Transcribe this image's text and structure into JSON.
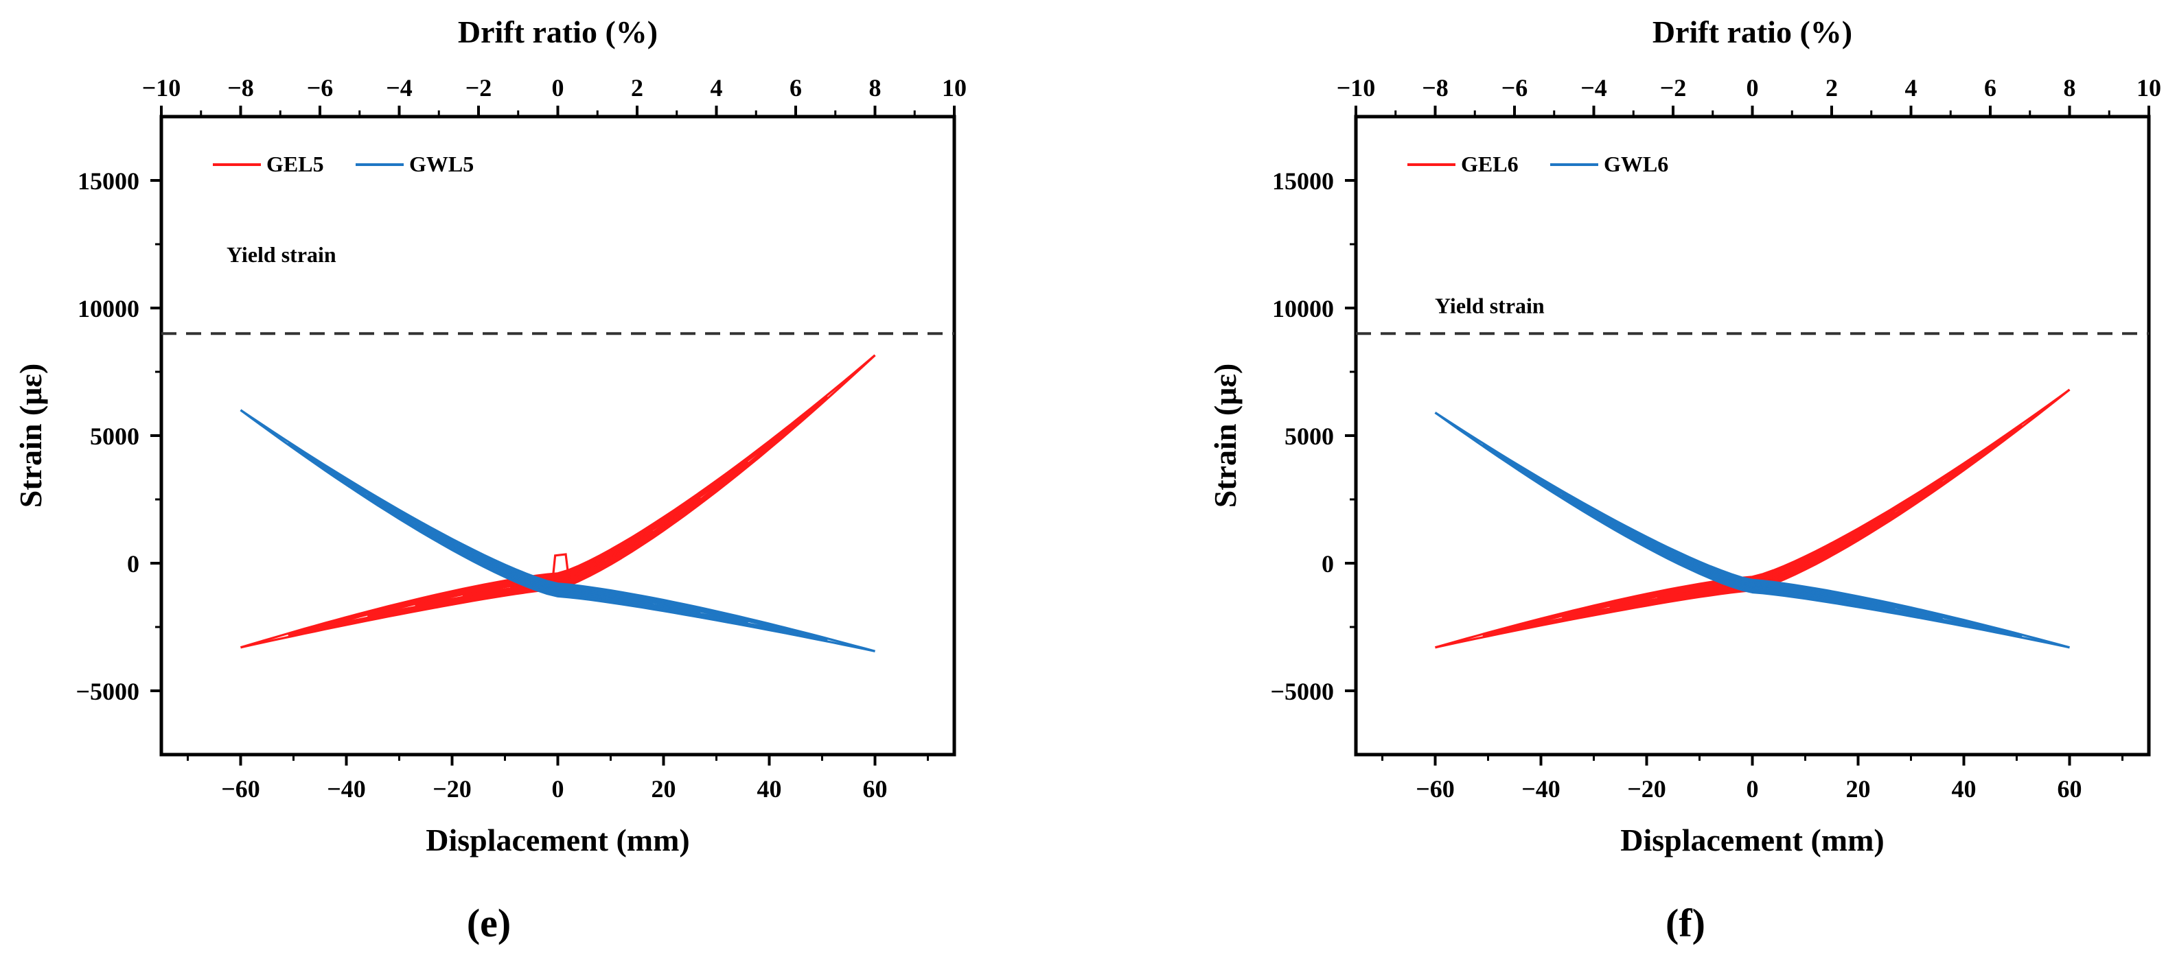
{
  "chart_data": [
    {
      "type": "line",
      "panel_label": "(e)",
      "xlabel": "Displacement (mm)",
      "x2label": "Drift ratio (%)",
      "ylabel": "Strain (με)",
      "xlim": [
        -75,
        75
      ],
      "x2lim": [
        -10,
        10
      ],
      "ylim": [
        -7500,
        17500
      ],
      "x_ticks": [
        -60,
        -40,
        -20,
        0,
        20,
        40,
        60
      ],
      "x_tick_labels": [
        "−60",
        "−40",
        "−20",
        "0",
        "20",
        "40",
        "60"
      ],
      "x2_ticks": [
        -10,
        -8,
        -6,
        -4,
        -2,
        0,
        2,
        4,
        6,
        8,
        10
      ],
      "x2_tick_labels": [
        "−10",
        "−8",
        "−6",
        "−4",
        "−2",
        "0",
        "2",
        "4",
        "6",
        "8",
        "10"
      ],
      "y_ticks": [
        -5000,
        0,
        5000,
        10000,
        15000
      ],
      "y_tick_labels": [
        "−5000",
        "0",
        "5000",
        "10000",
        "15000"
      ],
      "yield_strain": 9000,
      "yield_label": "Yield strain",
      "yield_label_y": 11800,
      "legend": [
        "GEL5",
        "GWL5"
      ],
      "series": [
        {
          "name": "GEL5",
          "color": "#ff1a1a",
          "end_pos": 8150,
          "end_neg": -3300,
          "min_strain": -700,
          "spike": 300
        },
        {
          "name": "GWL5",
          "color": "#1f77c4",
          "end_pos": -3450,
          "end_neg": 6000,
          "min_strain": -1050,
          "spike": 0
        }
      ]
    },
    {
      "type": "line",
      "panel_label": "(f)",
      "xlabel": "Displacement (mm)",
      "x2label": "Drift ratio (%)",
      "ylabel": "Strain (με)",
      "xlim": [
        -75,
        75
      ],
      "x2lim": [
        -10,
        10
      ],
      "ylim": [
        -7500,
        17500
      ],
      "x_ticks": [
        -60,
        -40,
        -20,
        0,
        20,
        40,
        60
      ],
      "x_tick_labels": [
        "−60",
        "−40",
        "−20",
        "0",
        "20",
        "40",
        "60"
      ],
      "x2_ticks": [
        -10,
        -8,
        -6,
        -4,
        -2,
        0,
        2,
        4,
        6,
        8,
        10
      ],
      "x2_tick_labels": [
        "−10",
        "−8",
        "−6",
        "−4",
        "−2",
        "0",
        "2",
        "4",
        "6",
        "8",
        "10"
      ],
      "y_ticks": [
        -5000,
        0,
        5000,
        10000,
        15000
      ],
      "y_tick_labels": [
        "−5000",
        "0",
        "5000",
        "10000",
        "15000"
      ],
      "yield_strain": 9000,
      "yield_label": "Yield strain",
      "yield_label_y": 9800,
      "legend": [
        "GEL6",
        "GWL6"
      ],
      "series": [
        {
          "name": "GEL6",
          "color": "#ff1a1a",
          "end_pos": 6800,
          "end_neg": -3300,
          "min_strain": -800,
          "spike": 0
        },
        {
          "name": "GWL6",
          "color": "#1f77c4",
          "end_pos": -3300,
          "end_neg": 5900,
          "min_strain": -900,
          "spike": 0
        }
      ]
    }
  ]
}
